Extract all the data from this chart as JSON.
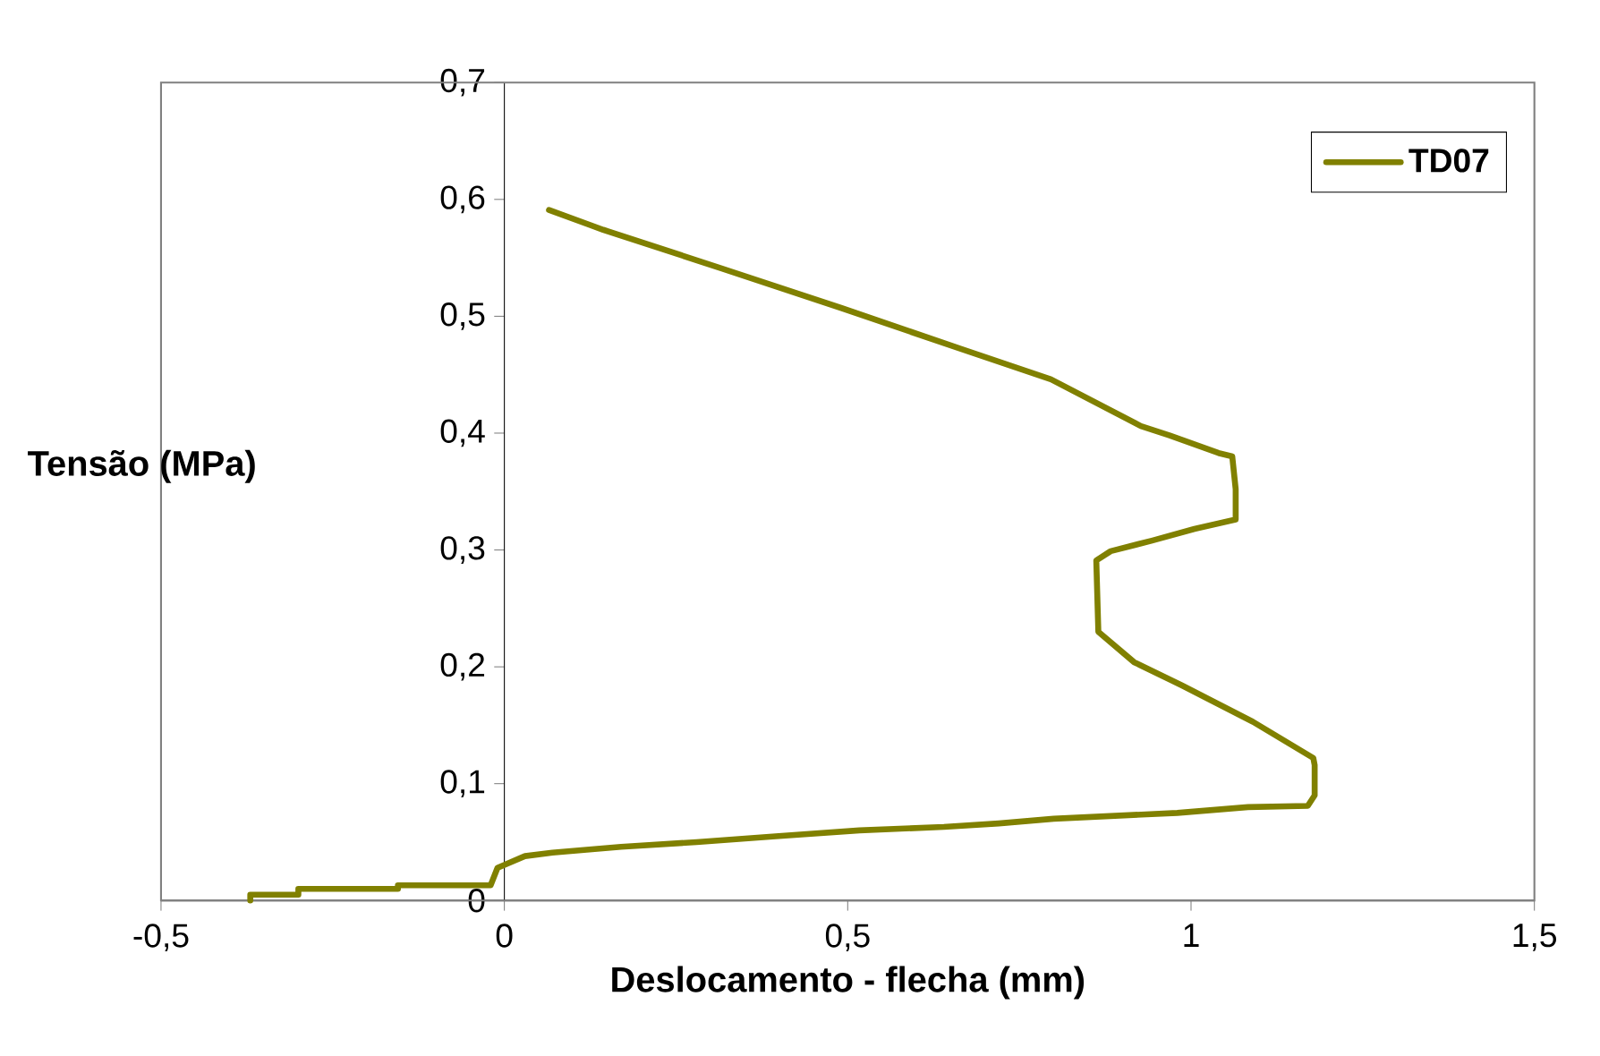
{
  "chart_data": {
    "type": "line",
    "xlabel": "Deslocamento - flecha (mm)",
    "ylabel": "Tensão (MPa)",
    "xlim": [
      -0.5,
      1.5
    ],
    "ylim": [
      0,
      0.7
    ],
    "xticks": [
      {
        "value": -0.5,
        "label": "-0,5"
      },
      0,
      {
        "value": 0.5,
        "label": "0,5"
      },
      1,
      {
        "value": 1.5,
        "label": "1,5"
      }
    ],
    "yticks": [
      0,
      {
        "value": 0.1,
        "label": "0,1"
      },
      {
        "value": 0.2,
        "label": "0,2"
      },
      {
        "value": 0.3,
        "label": "0,3"
      },
      {
        "value": 0.4,
        "label": "0,4"
      },
      {
        "value": 0.5,
        "label": "0,5"
      },
      {
        "value": 0.6,
        "label": "0,6"
      },
      {
        "value": 0.7,
        "label": "0,7"
      }
    ],
    "legend": "top right",
    "marker": "none",
    "line_style": "solid",
    "series": [
      {
        "name": "TD07",
        "color": "#808000",
        "x": [
          -0.37,
          -0.37,
          -0.3,
          -0.3,
          -0.155,
          -0.155,
          -0.02,
          -0.01,
          0.03,
          0.07,
          0.17,
          0.28,
          0.395,
          0.517,
          0.64,
          0.72,
          0.8,
          0.98,
          1.083,
          1.17,
          1.18,
          1.18,
          1.178,
          1.09,
          0.987,
          0.917,
          0.865,
          0.862,
          0.883,
          0.943,
          1.005,
          1.065,
          1.065,
          1.06,
          1.04,
          0.969,
          0.927,
          0.796,
          0.665,
          0.491,
          0.316,
          0.144,
          0.065
        ],
        "values": [
          0,
          0.005,
          0.005,
          0.01,
          0.01,
          0.013,
          0.013,
          0.028,
          0.038,
          0.041,
          0.046,
          0.05,
          0.055,
          0.06,
          0.063,
          0.066,
          0.07,
          0.075,
          0.08,
          0.081,
          0.09,
          0.116,
          0.122,
          0.153,
          0.184,
          0.204,
          0.23,
          0.291,
          0.299,
          0.308,
          0.318,
          0.326,
          0.352,
          0.38,
          0.383,
          0.398,
          0.406,
          0.446,
          0.472,
          0.507,
          0.541,
          0.574,
          0.591
        ]
      }
    ]
  }
}
